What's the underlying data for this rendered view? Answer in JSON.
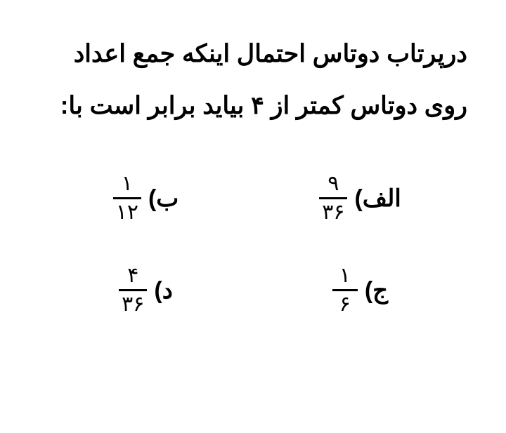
{
  "question": {
    "line1": "درپرتاب دوتاس احتمال اینکه جمع اعداد",
    "line2": "روی دوتاس کمتر از ۴ بیاید برابر است با:"
  },
  "options": {
    "alef": {
      "label": "الف)",
      "numerator": "۹",
      "denominator": "۳۶"
    },
    "be": {
      "label": "ب)",
      "numerator": "۱",
      "denominator": "۱۲"
    },
    "jim": {
      "label": "ج)",
      "numerator": "۱",
      "denominator": "۶"
    },
    "dal": {
      "label": "د)",
      "numerator": "۴",
      "denominator": "۳۶"
    }
  },
  "colors": {
    "background": "#ffffff",
    "text": "#000000"
  },
  "typography": {
    "question_fontsize": 35,
    "option_fontsize": 34,
    "fraction_fontsize": 30,
    "weight_question": 700,
    "weight_option_label": 700
  }
}
